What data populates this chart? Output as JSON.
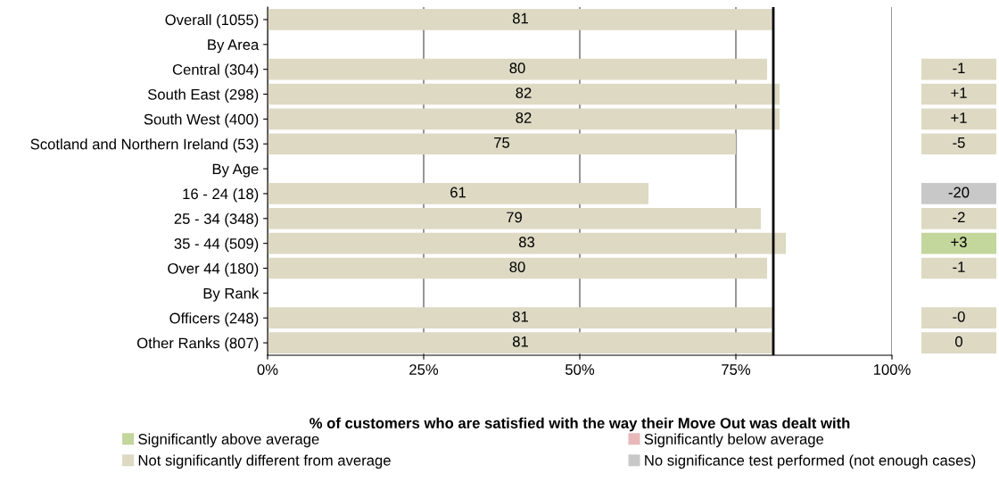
{
  "chart_data": [
    {
      "type": "bar",
      "orientation": "horizontal",
      "xlabel": "% of customers who are satisfied with the way their Move Out was dealt with",
      "categories": [
        "Overall (1055)",
        "By Area",
        "Central (304)",
        "South East (298)",
        "South West (400)",
        "Scotland and Northern Ireland (53)",
        "By Age",
        "16 - 24 (18)",
        "25 - 34 (348)",
        "35 - 44 (509)",
        "Over 44 (180)",
        "By Rank",
        "Officers (248)",
        "Other Ranks (807)"
      ],
      "values": [
        81,
        null,
        80,
        82,
        82,
        75,
        null,
        61,
        79,
        83,
        80,
        null,
        81,
        81
      ],
      "color": "#ddd9c3",
      "data_labels": true,
      "xlim": [
        0,
        100
      ],
      "xticks": [
        {
          "value": 0,
          "label": "0%"
        },
        {
          "value": 25,
          "label": "25%"
        },
        {
          "value": 50,
          "label": "50%"
        },
        {
          "value": 75,
          "label": "75%"
        },
        {
          "value": 100,
          "label": "100%"
        }
      ],
      "grid": "x",
      "ref_lines": [
        {
          "axis": "x",
          "value": 81,
          "color": "#000000"
        }
      ]
    },
    {
      "type": "other",
      "categories": [
        null,
        null,
        null,
        null,
        null,
        null,
        null,
        null,
        null,
        null,
        null,
        null,
        null,
        null
      ],
      "value_labels": [
        null,
        null,
        "-1",
        "+1",
        "+1",
        "-5",
        null,
        "-20",
        "-2",
        "+3",
        "-1",
        null,
        "-0",
        "0"
      ],
      "colors": [
        null,
        null,
        "#ddd9c3",
        "#ddd9c3",
        "#ddd9c3",
        "#ddd9c3",
        null,
        "#c8c8c8",
        "#ddd9c3",
        "#c3d69b",
        "#ddd9c3",
        null,
        "#ddd9c3",
        "#ddd9c3"
      ]
    },
    {
      "type": "other",
      "legend": "bottom",
      "series": [
        {
          "name": "Significantly above average",
          "color": "#c3d69b"
        },
        {
          "name": "Significantly below average",
          "color": "#e6b9b8"
        },
        {
          "name": "Not significantly different from average",
          "color": "#ddd9c3"
        },
        {
          "name": "No significance test performed (not enough cases)",
          "color": "#c8c8c8"
        }
      ]
    }
  ]
}
